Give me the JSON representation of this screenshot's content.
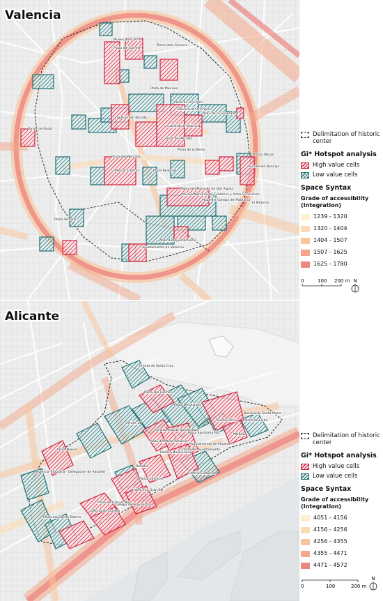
{
  "valencia": {
    "title": "Valencia",
    "labels": [
      "Museu del Carme",
      "Plaza del Carmen",
      "Torres dels Serrans",
      "Plaza de Manises",
      "Plaza de la Virgen",
      "Basílica de la Virgen",
      "Palau de la Generalitat",
      "Iglesia San Nicolás",
      "Catedral de Valencia",
      "Torres de Quart",
      "Torre del Micalet",
      "Plaza de la Reina",
      "Plaza Tetuán",
      "Plaza del Mercado",
      "Mercat Central",
      "Fundación Bancaja",
      "Plaza Redonda",
      "Palau del Marqués de Dos Aguas",
      "Museo Nacional de Cerámica y Artes Suntuarias",
      "Plaza del Colegio del Patriarca",
      "Plaza del Pilar",
      "El Parterre",
      "Plaza del Ayuntamiento",
      "Ayuntamiento de Valencia"
    ],
    "legend": {
      "historic": "Delimitation of historic center",
      "hotspot_title": "Gi* Hotspot analysis",
      "high": "High value cells",
      "low": "Low value cells",
      "syntax_title": "Space Syntax",
      "syntax_sub": "Grade of accessibility (Integration)",
      "classes": [
        "1239 - 1320",
        "1320 - 1404",
        "1404 - 1507",
        "1507 - 1625",
        "1625 - 1780"
      ],
      "colors": [
        "#fdf0d0",
        "#fcdcb4",
        "#f9c59a",
        "#f4a88a",
        "#ee8680"
      ]
    },
    "scale": {
      "ticks": [
        "0",
        "100",
        "200 m"
      ],
      "north": "N"
    }
  },
  "alicante": {
    "title": "Alicante",
    "labels": [
      "Ermita de Santa Cruz",
      "Plaza Del Carmen",
      "Plaza De Quijano",
      "Basílica de Santa María",
      "Portal de Elche",
      "Puerta Ferrisa",
      "Concatedral de San Nicolás",
      "Plaza Santísima Faz",
      "MUBAG",
      "Plaza Nueva",
      "Centre 14",
      "Plaza del Abad Penalva",
      "Ayuntamiento de Alicante",
      "Agencia Tributaria - Delegación de Alicante",
      "Rambla",
      "Edificio Carbonell",
      "Hotel Tryp Gran Sol",
      "Plaza de Gabriel Miró",
      "Plaza del Doctor Balmis",
      "Colegio de Arquitectos",
      "Oficina de Correos",
      "Portal de Elche",
      "Palacio Maisonnave",
      "Plaza del Ayuntamiento"
    ],
    "legend": {
      "historic": "Delimitation of historic center",
      "hotspot_title": "Gi* Hotspot analysis",
      "high": "High value cells",
      "low": "Low value cells",
      "syntax_title": "Space Syntax",
      "syntax_sub": "Grade of accessibility (Integration)",
      "classes": [
        "4051 - 4156",
        "4156 - 4256",
        "4256 - 4355",
        "4355 - 4471",
        "4471 - 4572"
      ],
      "colors": [
        "#fdf0d0",
        "#fcdcb4",
        "#f9c59a",
        "#f4a88a",
        "#ee8680"
      ]
    },
    "scale": {
      "ticks": [
        "0",
        "100",
        "200 m"
      ],
      "north": "N"
    }
  }
}
